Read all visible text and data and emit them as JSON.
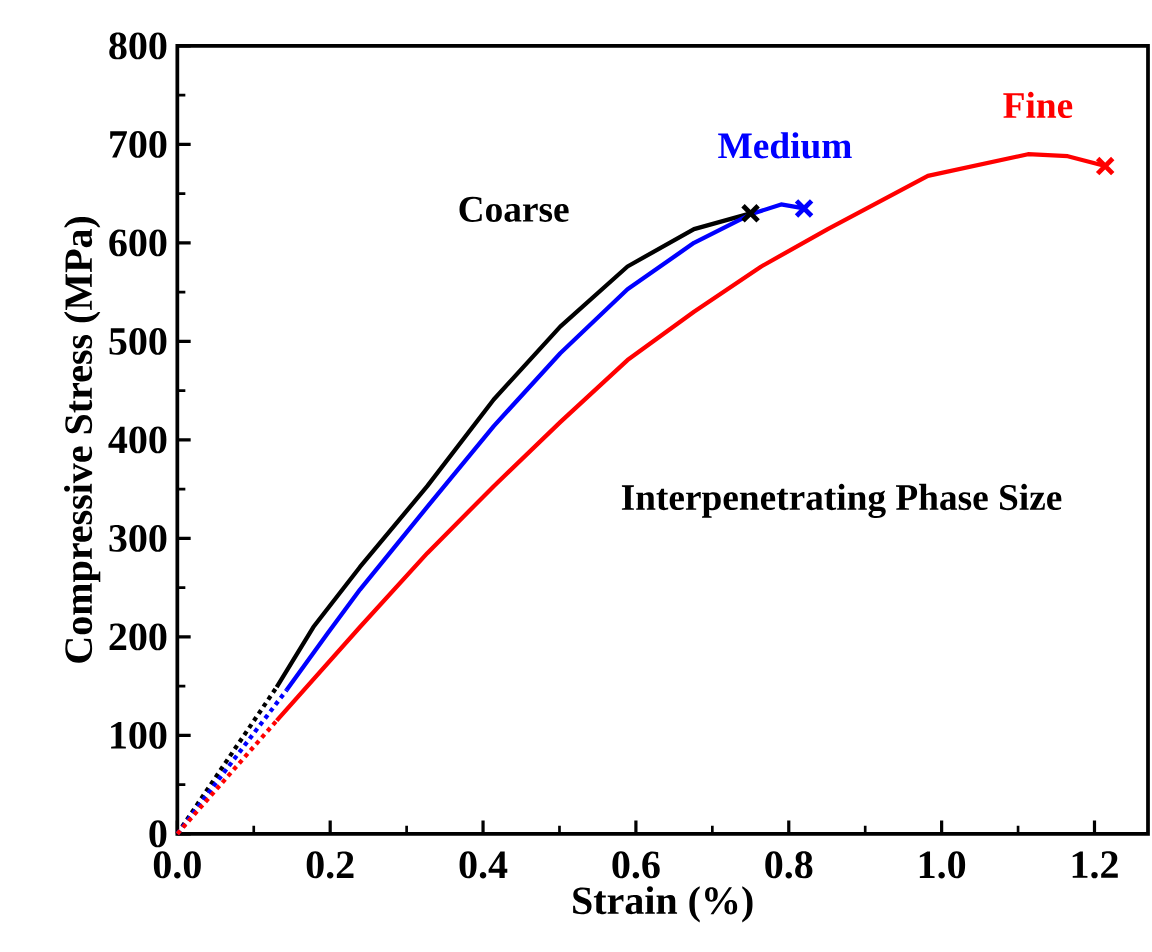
{
  "chart_data": {
    "type": "line",
    "xlabel": "Strain (%)",
    "ylabel": "Compressive Stress (MPa)",
    "annotations": [
      "Interpenetrating Phase Size"
    ],
    "xlim": [
      0,
      1.27
    ],
    "ylim": [
      0,
      800
    ],
    "xticks": [
      {
        "value": 0,
        "label": "0.0"
      },
      0.2,
      0.4,
      0.6,
      0.8,
      {
        "value": 1,
        "label": "1.0"
      },
      1.2
    ],
    "yticks": [
      0,
      100,
      200,
      300,
      400,
      500,
      600,
      700,
      800
    ],
    "series": [
      {
        "name": "Coarse",
        "color": "#000000",
        "x": [
          0.13,
          0.178,
          0.239,
          0.327,
          0.414,
          0.501,
          0.589,
          0.676,
          0.75
        ],
        "values": [
          149,
          210,
          271,
          353,
          441,
          515,
          576,
          614,
          630
        ]
      },
      {
        "name": "Medium",
        "color": "#0000ff",
        "x": [
          0.143,
          0.196,
          0.239,
          0.327,
          0.414,
          0.501,
          0.589,
          0.676,
          0.75,
          0.79,
          0.82
        ],
        "values": [
          146,
          203,
          248,
          332,
          414,
          488,
          553,
          600,
          629,
          639,
          635
        ]
      },
      {
        "name": "Fine",
        "color": "#ff0000",
        "x": [
          0.13,
          0.239,
          0.327,
          0.414,
          0.501,
          0.589,
          0.676,
          0.764,
          0.851,
          0.982,
          1.113,
          1.165,
          1.214
        ],
        "values": [
          115,
          210,
          285,
          353,
          418,
          481,
          530,
          576,
          614,
          668,
          690,
          688,
          678
        ]
      },
      {
        "color": "#000000",
        "line_style": "dotted",
        "x": [
          0,
          0.13
        ],
        "values": [
          0,
          149
        ]
      },
      {
        "color": "#0000ff",
        "line_style": "dotted",
        "x": [
          0,
          0.143
        ],
        "values": [
          0,
          146
        ]
      },
      {
        "color": "#ff0000",
        "line_style": "dotted",
        "x": [
          0,
          0.13
        ],
        "values": [
          0,
          115
        ]
      },
      {
        "type": "scatter",
        "marker": "cross",
        "colors": [
          "#000000",
          "#0000ff",
          "#ff0000"
        ],
        "x": [
          0.75,
          0.82,
          1.214
        ],
        "values": [
          630,
          635,
          678
        ]
      }
    ]
  }
}
